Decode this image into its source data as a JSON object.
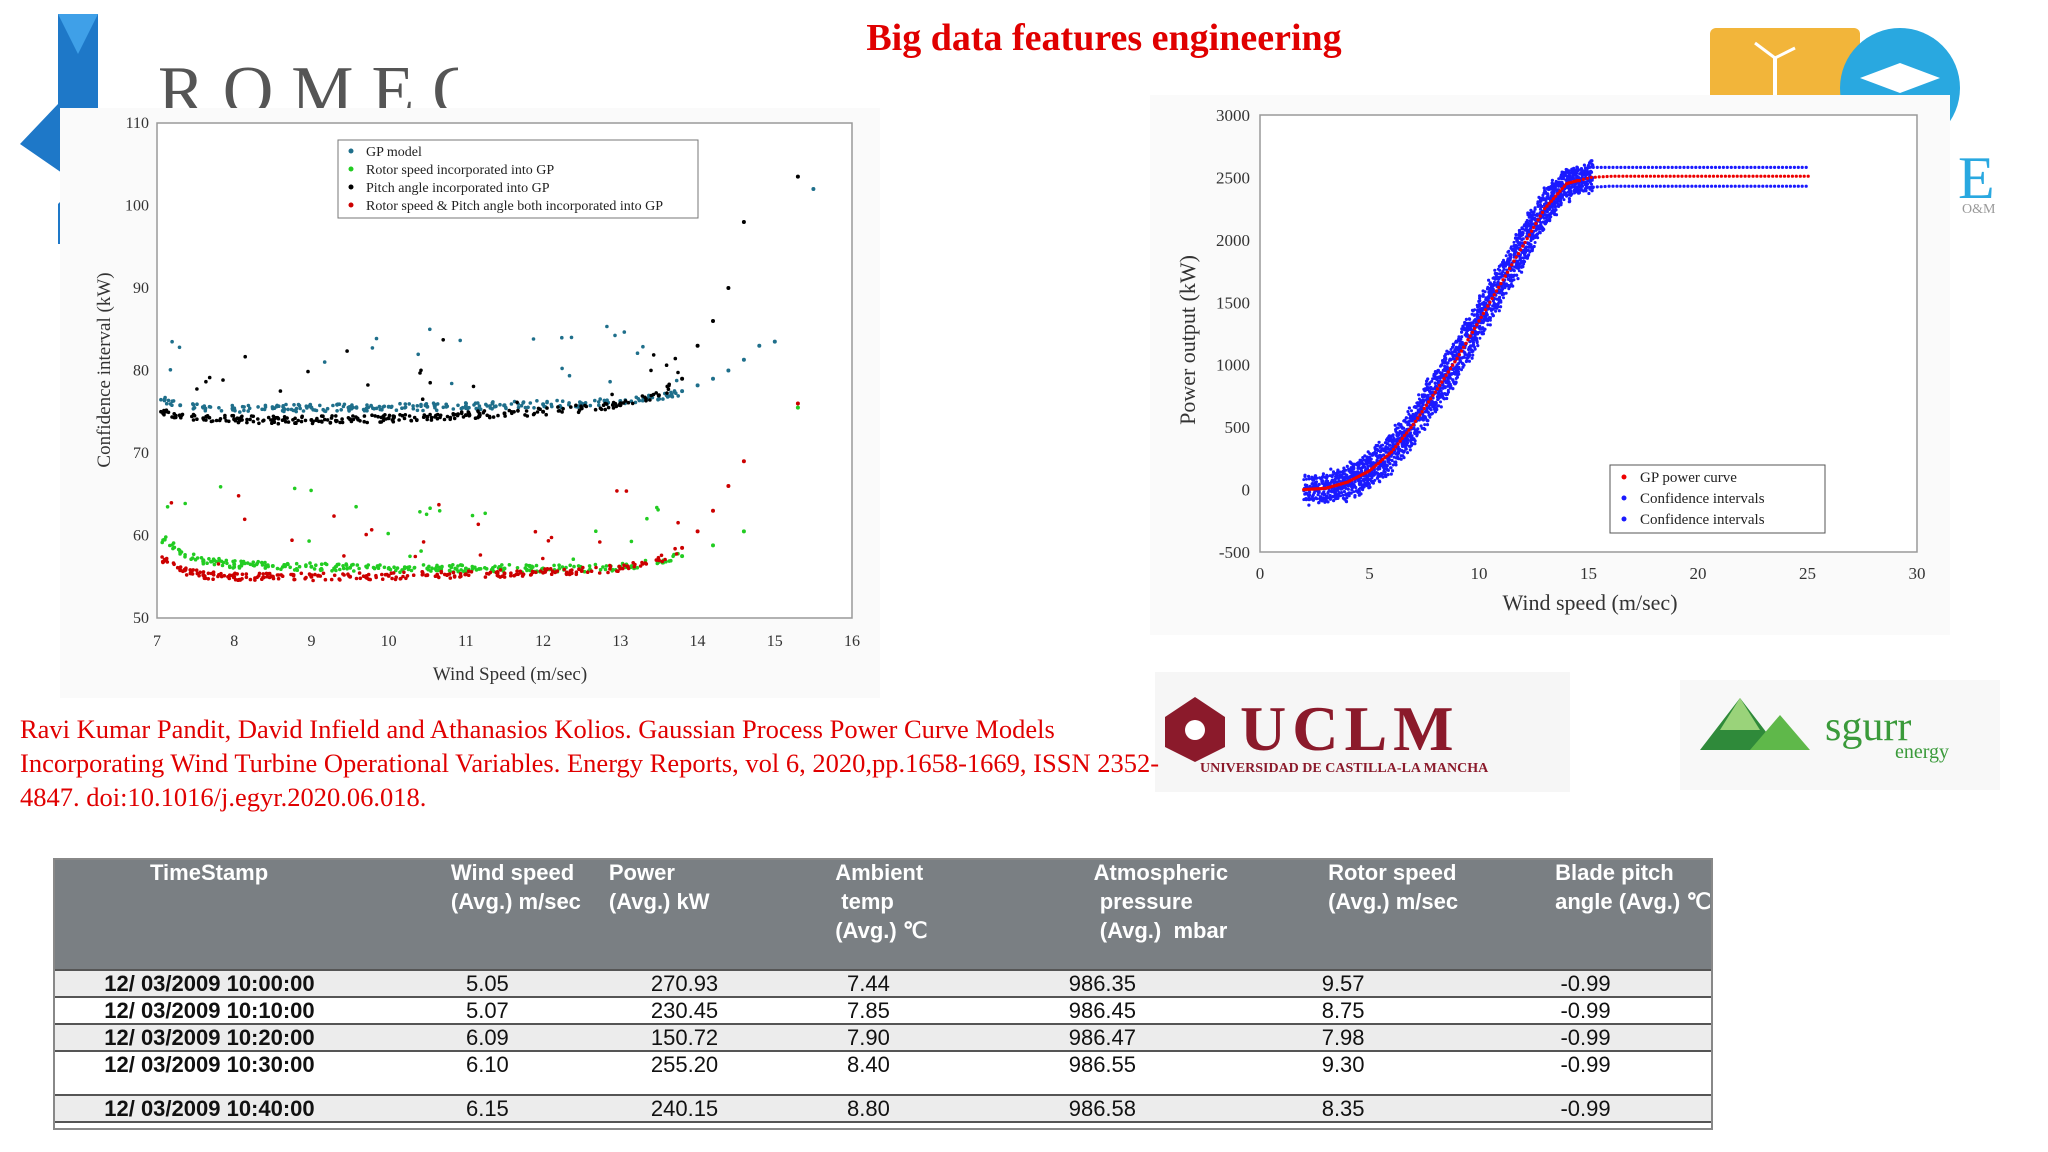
{
  "slide": {
    "title": "Big data features engineering",
    "citation": "Ravi Kumar Pandit, David Infield and Athanasios Kolios. Gaussian Process Power Curve Models Incorporating Wind Turbine Operational Variables. Energy Reports, vol 6, 2020,pp.1658-1669, ISSN 2352-4847. doi:10.1016/j.egyr.2020.06.018."
  },
  "logos": {
    "romeo": "ROMEO",
    "oe_suffix": "O&M",
    "uclm": "UCLM",
    "uclm_sub": "UNIVERSIDAD DE CASTILLA-LA MANCHA",
    "sgurr": "sgurr",
    "sgurr_sub": "energy"
  },
  "colors": {
    "title": "#e00000",
    "gp_model": "#1f6f8b",
    "rotor": "#22cc22",
    "pitch": "#000000",
    "both": "#cc0000",
    "confidence": "#1a1aff",
    "power_curve": "#ee0000",
    "table_header": "#7a7f83"
  },
  "chart_data": [
    {
      "type": "scatter",
      "xlabel": "Wind Speed (m/sec)",
      "ylabel": "Confidence interval (kW)",
      "xlim": [
        7,
        16
      ],
      "ylim": [
        50,
        110
      ],
      "xticks": [
        "7",
        "8",
        "9",
        "10",
        "11",
        "12",
        "13",
        "14",
        "15",
        "16"
      ],
      "yticks": [
        "50",
        "60",
        "70",
        "80",
        "90",
        "100",
        "110"
      ],
      "legend_position": "top-center",
      "series": [
        {
          "name": "GP model",
          "color_key": "gp_model",
          "x": [
            7.1,
            7.3,
            7.6,
            8.0,
            8.5,
            9.0,
            9.5,
            10.0,
            10.5,
            11.0,
            11.5,
            12.0,
            12.5,
            13.0,
            13.3,
            13.6,
            13.8,
            14.0,
            14.2,
            14.4,
            14.6,
            14.8,
            15.0,
            15.5
          ],
          "y": [
            76.5,
            75.8,
            75.5,
            75.4,
            75.4,
            75.5,
            75.5,
            75.6,
            75.6,
            75.7,
            75.8,
            75.9,
            76.0,
            76.3,
            76.6,
            77.0,
            77.5,
            78.2,
            79.0,
            80.0,
            81.3,
            83.0,
            83.5,
            102
          ]
        },
        {
          "name": "Rotor speed incorporated into GP",
          "color_key": "rotor",
          "x": [
            7.1,
            7.3,
            7.6,
            8.0,
            8.5,
            9.0,
            9.5,
            10.0,
            10.5,
            11.0,
            11.5,
            12.0,
            12.5,
            13.0,
            13.5,
            13.8,
            14.2,
            14.6,
            15.3
          ],
          "y": [
            59.5,
            58.0,
            57.0,
            56.5,
            56.3,
            56.2,
            56.1,
            56.0,
            56.0,
            56.0,
            56.0,
            56.0,
            56.0,
            56.2,
            56.8,
            57.5,
            58.8,
            60.5,
            75.5
          ]
        },
        {
          "name": "Pitch angle incorporated into GP",
          "color_key": "pitch",
          "x": [
            7.1,
            7.3,
            7.6,
            8.0,
            8.5,
            9.0,
            9.5,
            10.0,
            10.5,
            11.0,
            11.5,
            12.0,
            12.5,
            13.0,
            13.5,
            13.8,
            14.0,
            14.2,
            14.4,
            14.6,
            15.3
          ],
          "y": [
            75.0,
            74.5,
            74.2,
            74.1,
            74.0,
            74.0,
            74.1,
            74.2,
            74.4,
            74.6,
            74.8,
            75.0,
            75.4,
            75.8,
            77.0,
            79.0,
            83.0,
            86.0,
            90.0,
            98.0,
            103.5
          ]
        },
        {
          "name": "Rotor speed & Pitch angle both incorporated into GP",
          "color_key": "both",
          "x": [
            7.1,
            7.3,
            7.6,
            8.0,
            8.5,
            9.0,
            9.5,
            10.0,
            10.5,
            11.0,
            11.5,
            12.0,
            12.5,
            13.0,
            13.5,
            13.8,
            14.0,
            14.2,
            14.4,
            14.6,
            15.3
          ],
          "y": [
            57.0,
            55.8,
            55.2,
            55.0,
            55.0,
            55.0,
            55.0,
            55.1,
            55.2,
            55.3,
            55.4,
            55.5,
            55.7,
            56.0,
            57.0,
            58.5,
            60.5,
            63.0,
            66.0,
            69.0,
            76.0
          ]
        }
      ]
    },
    {
      "type": "scatter",
      "xlabel": "Wind speed (m/sec)",
      "ylabel": "Power output (kW)",
      "xlim": [
        0,
        30
      ],
      "ylim": [
        -500,
        3000
      ],
      "xticks": [
        "0",
        "5",
        "10",
        "15",
        "20",
        "25",
        "30"
      ],
      "yticks": [
        "-500",
        "0",
        "500",
        "1000",
        "1500",
        "2000",
        "2500",
        "3000"
      ],
      "legend_position": "bottom-right",
      "series": [
        {
          "name": "GP power curve",
          "color_key": "power_curve",
          "x": [
            2,
            3,
            4,
            5,
            6,
            7,
            8,
            9,
            10,
            11,
            12,
            13,
            14,
            15,
            16,
            18,
            20,
            22,
            24,
            25
          ],
          "y": [
            0,
            10,
            60,
            150,
            300,
            520,
            780,
            1050,
            1350,
            1650,
            1950,
            2250,
            2450,
            2500,
            2510,
            2510,
            2510,
            2510,
            2510,
            2510
          ]
        },
        {
          "name": "Confidence intervals",
          "color_key": "confidence",
          "x": [
            2,
            3,
            4,
            5,
            6,
            7,
            8,
            9,
            10,
            11,
            12,
            13,
            14,
            15,
            16,
            18,
            20,
            22,
            24,
            25
          ],
          "y": [
            80,
            100,
            160,
            260,
            420,
            650,
            920,
            1200,
            1500,
            1800,
            2100,
            2380,
            2550,
            2580,
            2580,
            2580,
            2580,
            2580,
            2580,
            2580
          ]
        },
        {
          "name": "Confidence intervals",
          "color_key": "confidence",
          "x": [
            2,
            3,
            4,
            5,
            6,
            7,
            8,
            9,
            10,
            11,
            12,
            13,
            14,
            15,
            16,
            18,
            20,
            22,
            24,
            25
          ],
          "y": [
            -80,
            -70,
            -40,
            40,
            180,
            390,
            640,
            900,
            1200,
            1500,
            1800,
            2120,
            2350,
            2420,
            2430,
            2430,
            2430,
            2430,
            2430,
            2430
          ]
        }
      ]
    },
    {
      "type": "table",
      "columns": [
        "TimeStamp",
        "Wind speed\n(Avg.) m/sec",
        "Power\n(Avg.) kW",
        "Ambient\n temp\n(Avg.) ℃",
        "Atmospheric\n pressure\n (Avg.)  mbar",
        "Rotor speed\n(Avg.) m/sec",
        "Blade pitch\nangle (Avg.) ℃"
      ],
      "rows": [
        [
          "12/ 03/2009  10:00:00",
          "5.05",
          "270.93",
          "7.44",
          "986.35",
          "9.57",
          "-0.99"
        ],
        [
          "12/ 03/2009  10:10:00",
          "5.07",
          "230.45",
          "7.85",
          "986.45",
          "8.75",
          "-0.99"
        ],
        [
          "12/ 03/2009 10:20:00",
          "6.09",
          "150.72",
          "7.90",
          "986.47",
          "7.98",
          "-0.99"
        ],
        [
          "12/ 03/2009  10:30:00",
          "6.10",
          "255.20",
          "8.40",
          "986.55",
          "9.30",
          "-0.99"
        ],
        [
          "12/ 03/2009  10:40:00",
          "6.15",
          "240.15",
          "8.80",
          "986.58",
          "8.35",
          "-0.99"
        ]
      ]
    }
  ]
}
